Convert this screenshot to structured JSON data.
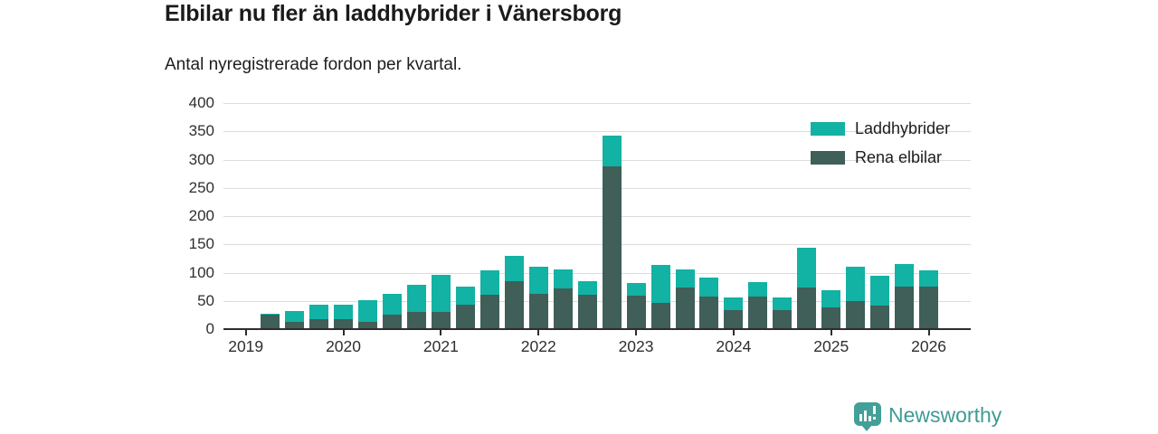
{
  "header": {
    "title": "Elbilar nu fler än laddhybrider i Vänersborg",
    "subtitle": "Antal nyregistrerade fordon per kvartal."
  },
  "chart_data": {
    "type": "bar",
    "stacked": true,
    "title": "Elbilar nu fler än laddhybrider i Vänersborg",
    "subtitle": "Antal nyregistrerade fordon per kvartal.",
    "ylim": [
      0,
      400
    ],
    "yticks": [
      0,
      50,
      100,
      150,
      200,
      250,
      300,
      350,
      400
    ],
    "x_axis_year_labels": [
      "2019",
      "2020",
      "2021",
      "2022",
      "2023",
      "2024",
      "2025",
      "2026"
    ],
    "grid": true,
    "legend_position": "top-right",
    "quarters": [
      "2019 Q2",
      "2019 Q3",
      "2019 Q4",
      "2020 Q1",
      "2020 Q2",
      "2020 Q3",
      "2020 Q4",
      "2021 Q1",
      "2021 Q2",
      "2021 Q3",
      "2021 Q4",
      "2022 Q1",
      "2022 Q2",
      "2022 Q3",
      "2022 Q4",
      "2023 Q1",
      "2023 Q2",
      "2023 Q3",
      "2023 Q4",
      "2024 Q1",
      "2024 Q2",
      "2024 Q3",
      "2024 Q4",
      "2025 Q1",
      "2025 Q2",
      "2025 Q3",
      "2025 Q4",
      "2026 Q1"
    ],
    "series": [
      {
        "name": "Rena elbilar",
        "color": "#3f5f58",
        "values": [
          25,
          13,
          17,
          18,
          13,
          26,
          30,
          30,
          43,
          60,
          84,
          62,
          72,
          61,
          288,
          59,
          46,
          74,
          58,
          33,
          57,
          34,
          74,
          39,
          50,
          42,
          75,
          75
        ]
      },
      {
        "name": "Laddhybrider",
        "color": "#12b2a4",
        "values": [
          2,
          19,
          25,
          26,
          39,
          37,
          48,
          65,
          32,
          43,
          44,
          48,
          34,
          24,
          55,
          23,
          67,
          32,
          33,
          23,
          26,
          22,
          70,
          31,
          60,
          52,
          40,
          28
        ]
      }
    ]
  },
  "legend": {
    "items": [
      {
        "label": "Laddhybrider",
        "color": "#12b2a4"
      },
      {
        "label": "Rena elbilar",
        "color": "#3f5f58"
      }
    ]
  },
  "footer": {
    "brand": "Newsworthy",
    "brand_color": "#3f9b94",
    "badge_color": "#42a098",
    "logo_icon": "bar-chart-pin-icon"
  }
}
